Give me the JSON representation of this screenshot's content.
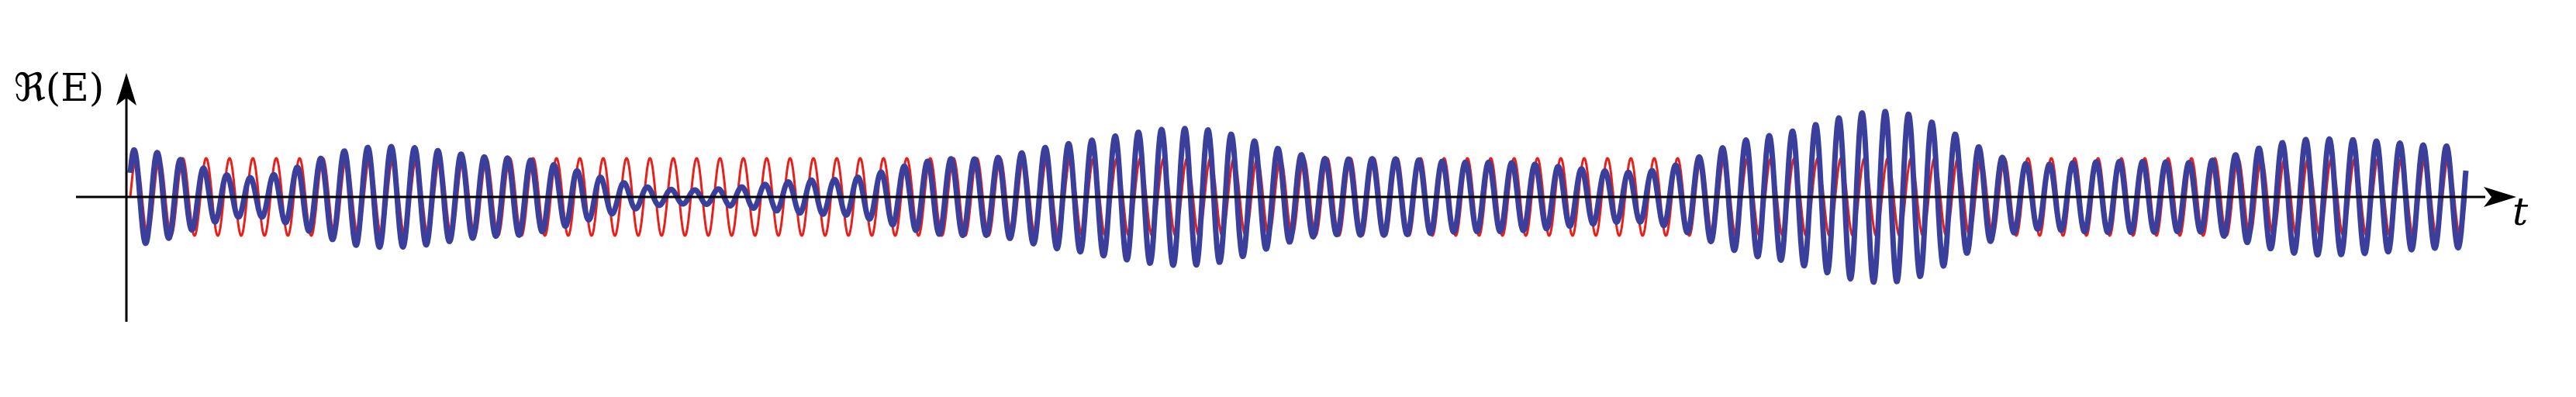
{
  "chart_data": {
    "type": "line",
    "title": "",
    "xlabel": "t",
    "ylabel": "ℜ(E)",
    "grid": false,
    "legend": "none",
    "ylim": [
      -1.6,
      1.6
    ],
    "xlim": [
      0,
      1
    ],
    "series": [
      {
        "role": "reference",
        "color": "#e8201c",
        "description_free": true,
        "carrier_cycles": 100,
        "amplitude": 0.5
      },
      {
        "role": "signal",
        "color": "#3a3f9c",
        "carrier_cycles": 100,
        "envelope": [
          {
            "x": 0.0,
            "y": 0.55
          },
          {
            "x": 0.05,
            "y": 0.25
          },
          {
            "x": 0.1,
            "y": 0.7
          },
          {
            "x": 0.16,
            "y": 0.45
          },
          {
            "x": 0.24,
            "y": 0.1
          },
          {
            "x": 0.3,
            "y": 0.2
          },
          {
            "x": 0.36,
            "y": 0.55
          },
          {
            "x": 0.4,
            "y": 0.7
          },
          {
            "x": 0.46,
            "y": 0.8
          },
          {
            "x": 0.52,
            "y": 0.55
          },
          {
            "x": 0.58,
            "y": 0.4
          },
          {
            "x": 0.64,
            "y": 0.35
          },
          {
            "x": 0.7,
            "y": 0.75
          },
          {
            "x": 0.76,
            "y": 1.05
          },
          {
            "x": 0.82,
            "y": 0.45
          },
          {
            "x": 0.88,
            "y": 0.4
          },
          {
            "x": 0.94,
            "y": 0.85
          },
          {
            "x": 1.0,
            "y": 0.6
          }
        ]
      }
    ]
  }
}
